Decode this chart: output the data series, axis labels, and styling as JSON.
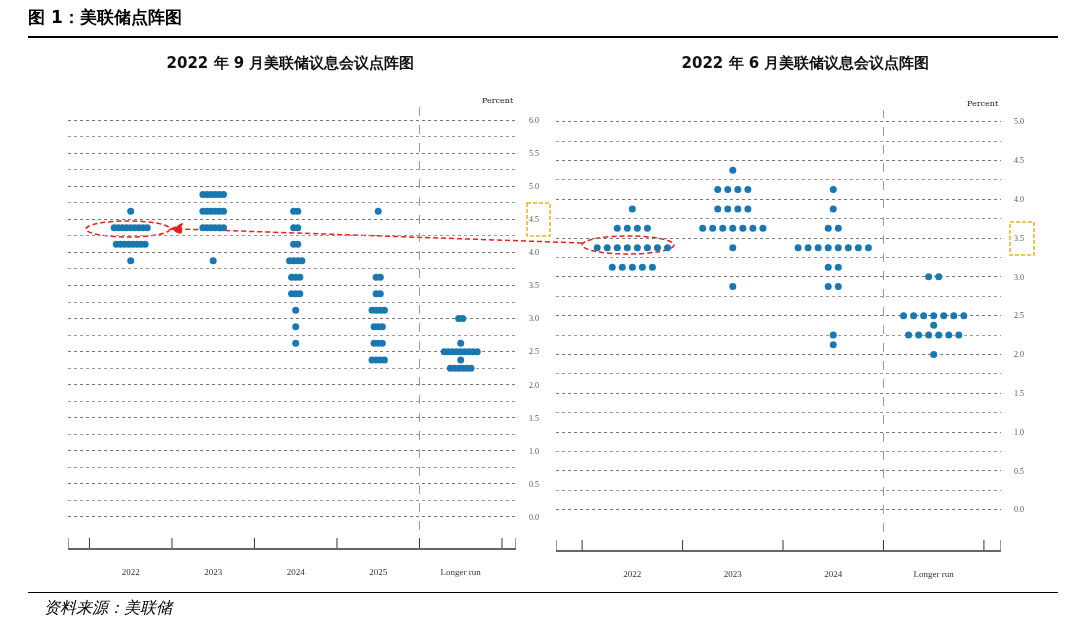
{
  "chart_data": [
    {
      "type": "scatter",
      "title": "2022 年 9 月美联储议息会议点阵图",
      "ylabel": "Percent",
      "annotations": [
        "图 1：美联储点阵图",
        "资料来源：美联储"
      ],
      "xlim": [
        2021.24,
        2026.67
      ],
      "xticks": [
        {
          "value": 2021.24,
          "label": null
        },
        {
          "value": 2021.5,
          "label": null
        },
        2022,
        {
          "value": 2022.5,
          "label": null
        },
        2023,
        {
          "value": 2023.5,
          "label": null
        },
        2024,
        {
          "value": 2024.5,
          "label": null
        },
        2025,
        {
          "value": 2025.5,
          "label": null
        },
        {
          "value": 2026,
          "label": "Longer run"
        },
        {
          "value": 2026.5,
          "label": null
        },
        {
          "value": 2026.67,
          "label": null
        }
      ],
      "ylim": [
        -0.47,
        6.2
      ],
      "yticks": [
        {
          "value": 0,
          "label": "0.0"
        },
        {
          "value": 0.25,
          "label": null
        },
        {
          "value": 0.5,
          "label": "0.5"
        },
        {
          "value": 0.75,
          "label": null
        },
        {
          "value": 1,
          "label": "1.0"
        },
        {
          "value": 1.25,
          "label": null
        },
        {
          "value": 1.5,
          "label": "1.5"
        },
        {
          "value": 1.75,
          "label": null
        },
        {
          "value": 2,
          "label": "2.0"
        },
        {
          "value": 2.25,
          "label": null
        },
        {
          "value": 2.5,
          "label": "2.5"
        },
        {
          "value": 2.75,
          "label": null
        },
        {
          "value": 3,
          "label": "3.0"
        },
        {
          "value": 3.25,
          "label": null
        },
        {
          "value": 3.5,
          "label": "3.5"
        },
        {
          "value": 3.75,
          "label": null
        },
        {
          "value": 4,
          "label": "4.0"
        },
        {
          "value": 4.25,
          "label": null
        },
        {
          "value": 4.5,
          "label": "4.5"
        },
        {
          "value": 4.75,
          "label": null
        },
        {
          "value": 5,
          "label": "5.0"
        },
        {
          "value": 5.25,
          "label": null
        },
        {
          "value": 5.5,
          "label": "5.5"
        },
        {
          "value": 5.75,
          "label": null
        },
        {
          "value": 6,
          "label": "6.0"
        }
      ],
      "grid": "y",
      "marker": "circle",
      "ref_lines": [
        {
          "axis": "x",
          "value": 2025.5,
          "line_style": "dashed",
          "color": "#999999"
        }
      ],
      "series": [
        {
          "color": "#1a78b0",
          "x": [
            2022,
            2021.8,
            2021.85,
            2021.9,
            2021.95,
            2022,
            2022.05,
            2022.1,
            2022.15,
            2022.2,
            2021.825,
            2021.875,
            2021.925,
            2021.975,
            2022.025,
            2022.075,
            2022.125,
            2022.175,
            2022,
            2022.875,
            2022.925,
            2022.975,
            2023.025,
            2023.075,
            2023.125,
            2022.875,
            2022.925,
            2022.975,
            2023.025,
            2023.075,
            2023.125,
            2022.875,
            2022.925,
            2022.975,
            2023.025,
            2023.075,
            2023.125,
            2023,
            2023.975,
            2024.025,
            2023.975,
            2024.025,
            2023.975,
            2024.025,
            2023.925,
            2023.975,
            2024.025,
            2024.075,
            2023.95,
            2024,
            2024.05,
            2023.95,
            2024,
            2024.05,
            2024,
            2024,
            2024,
            2025,
            2024.975,
            2025.025,
            2024.975,
            2025.025,
            2024.925,
            2024.975,
            2025.025,
            2025.075,
            2024.95,
            2025,
            2025.05,
            2024.95,
            2025,
            2025.05,
            2024.925,
            2024.975,
            2025.025,
            2025.075,
            2025.975,
            2026.025,
            2026,
            2025.8,
            2025.85,
            2025.9,
            2025.95,
            2026,
            2026.05,
            2026.1,
            2026.15,
            2026.2,
            2026,
            2025.875,
            2025.925,
            2025.975,
            2026.025,
            2026.075,
            2026.125
          ],
          "values": [
            4.625,
            4.375,
            4.375,
            4.375,
            4.375,
            4.375,
            4.375,
            4.375,
            4.375,
            4.375,
            4.125,
            4.125,
            4.125,
            4.125,
            4.125,
            4.125,
            4.125,
            4.125,
            3.875,
            4.875,
            4.875,
            4.875,
            4.875,
            4.875,
            4.875,
            4.625,
            4.625,
            4.625,
            4.625,
            4.625,
            4.625,
            4.375,
            4.375,
            4.375,
            4.375,
            4.375,
            4.375,
            3.875,
            4.625,
            4.625,
            4.375,
            4.375,
            4.125,
            4.125,
            3.875,
            3.875,
            3.875,
            3.875,
            3.625,
            3.625,
            3.625,
            3.375,
            3.375,
            3.375,
            3.125,
            2.875,
            2.625,
            4.625,
            3.625,
            3.625,
            3.375,
            3.375,
            3.125,
            3.125,
            3.125,
            3.125,
            2.875,
            2.875,
            2.875,
            2.625,
            2.625,
            2.625,
            2.375,
            2.375,
            2.375,
            2.375,
            3,
            3,
            2.625,
            2.5,
            2.5,
            2.5,
            2.5,
            2.5,
            2.5,
            2.5,
            2.5,
            2.5,
            2.375,
            2.25,
            2.25,
            2.25,
            2.25,
            2.25,
            2.25
          ]
        }
      ]
    },
    {
      "type": "scatter",
      "title": "2022 年 6 月美联储议息会议点阵图",
      "ylabel": "Percent",
      "xlim": [
        2021.24,
        2025.67
      ],
      "xticks": [
        {
          "value": 2021.24,
          "label": null
        },
        {
          "value": 2021.5,
          "label": null
        },
        2022,
        {
          "value": 2022.5,
          "label": null
        },
        2023,
        {
          "value": 2023.5,
          "label": null
        },
        2024,
        {
          "value": 2024.5,
          "label": null
        },
        {
          "value": 2025,
          "label": "Longer run"
        },
        {
          "value": 2025.5,
          "label": null
        },
        {
          "value": 2025.67,
          "label": null
        }
      ],
      "ylim": [
        -0.52,
        5.15
      ],
      "yticks": [
        {
          "value": 0,
          "label": "0.0"
        },
        {
          "value": 0.25,
          "label": null
        },
        {
          "value": 0.5,
          "label": "0.5"
        },
        {
          "value": 0.75,
          "label": null
        },
        {
          "value": 1,
          "label": "1.0"
        },
        {
          "value": 1.25,
          "label": null
        },
        {
          "value": 1.5,
          "label": "1.5"
        },
        {
          "value": 1.75,
          "label": null
        },
        {
          "value": 2,
          "label": "2.0"
        },
        {
          "value": 2.25,
          "label": null
        },
        {
          "value": 2.5,
          "label": "2.5"
        },
        {
          "value": 2.75,
          "label": null
        },
        {
          "value": 3,
          "label": "3.0"
        },
        {
          "value": 3.25,
          "label": null
        },
        {
          "value": 3.5,
          "label": "3.5"
        },
        {
          "value": 3.75,
          "label": null
        },
        {
          "value": 4,
          "label": "4.0"
        },
        {
          "value": 4.25,
          "label": null
        },
        {
          "value": 4.5,
          "label": "4.5"
        },
        {
          "value": 4.75,
          "label": null
        },
        {
          "value": 5,
          "label": "5.0"
        }
      ],
      "grid": "y",
      "marker": "circle",
      "ref_lines": [
        {
          "axis": "x",
          "value": 2024.5,
          "line_style": "dashed",
          "color": "#999999"
        }
      ],
      "series": [
        {
          "color": "#1a78b0",
          "x": [
            2022,
            2021.85,
            2021.95,
            2022.05,
            2022.15,
            2021.65,
            2021.75,
            2021.85,
            2021.95,
            2022.05,
            2022.15,
            2022.25,
            2022.35,
            2021.8,
            2021.9,
            2022,
            2022.1,
            2022.2,
            2023,
            2022.85,
            2022.95,
            2023.05,
            2023.15,
            2022.85,
            2022.95,
            2023.05,
            2023.15,
            2022.7,
            2022.8,
            2022.9,
            2023,
            2023.1,
            2023.2,
            2023.3,
            2023,
            2023,
            2024,
            2024,
            2023.95,
            2024.05,
            2023.65,
            2023.75,
            2023.85,
            2023.95,
            2024.05,
            2024.15,
            2024.25,
            2024.35,
            2023.95,
            2024.05,
            2023.95,
            2024.05,
            2024,
            2024,
            2024.95,
            2025.05,
            2024.7,
            2024.8,
            2024.9,
            2025,
            2025.1,
            2025.2,
            2025.3,
            2025,
            2024.75,
            2024.85,
            2024.95,
            2025.05,
            2025.15,
            2025.25,
            2025
          ],
          "values": [
            3.875,
            3.625,
            3.625,
            3.625,
            3.625,
            3.375,
            3.375,
            3.375,
            3.375,
            3.375,
            3.375,
            3.375,
            3.375,
            3.125,
            3.125,
            3.125,
            3.125,
            3.125,
            4.375,
            4.125,
            4.125,
            4.125,
            4.125,
            3.875,
            3.875,
            3.875,
            3.875,
            3.625,
            3.625,
            3.625,
            3.625,
            3.625,
            3.625,
            3.625,
            3.375,
            2.875,
            4.125,
            3.875,
            3.625,
            3.625,
            3.375,
            3.375,
            3.375,
            3.375,
            3.375,
            3.375,
            3.375,
            3.375,
            3.125,
            3.125,
            2.875,
            2.875,
            2.25,
            2.125,
            3,
            3,
            2.5,
            2.5,
            2.5,
            2.5,
            2.5,
            2.5,
            2.5,
            2.375,
            2.25,
            2.25,
            2.25,
            2.25,
            2.25,
            2.25,
            2
          ]
        }
      ]
    }
  ]
}
